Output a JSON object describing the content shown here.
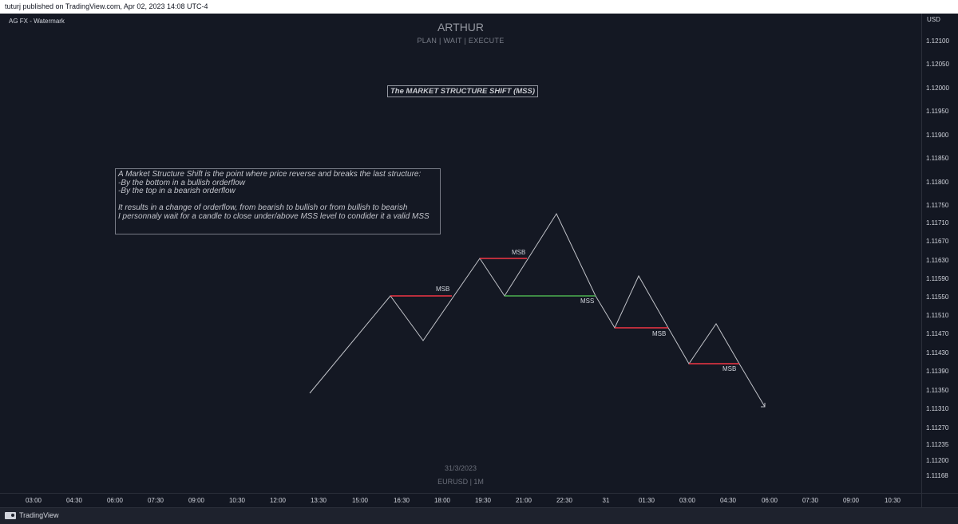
{
  "header": {
    "published_text": "tuturj published on TradingView.com, Apr 02, 2023 14:08 UTC-4"
  },
  "chart": {
    "symbol_label": "AG FX - Watermark",
    "watermark": {
      "title": "ARTHUR",
      "subtitle": "PLAN  |  WAIT  |  EXECUTE",
      "date": "31/3/2023",
      "symbol": "EURUSD | 1M"
    },
    "mss_title": "The MARKET STRUCTURE SHIFT (MSS)",
    "note_lines": [
      "A Market Structure Shift is the point where price reverse and breaks the last structure:",
      "-By the bottom in a bullish orderflow",
      "-By the top in a bearish orderflow",
      "",
      "It results in a change of orderflow, from bearish to bullish or from bullish to bearish",
      "I personnaly wait for a candle to close under/above MSS level to condider it a valid MSS"
    ],
    "markers": [
      {
        "label": "MSB",
        "kind": "break",
        "level": 1.11553
      },
      {
        "label": "MSB",
        "kind": "break",
        "level": 1.11632
      },
      {
        "label": "MSS",
        "kind": "shift",
        "level": 1.11553
      },
      {
        "label": "MSB",
        "kind": "break",
        "level": 1.11482
      },
      {
        "label": "MSB",
        "kind": "break",
        "level": 1.11409
      }
    ],
    "colors": {
      "break_line": "#f23645",
      "shift_line": "#4caf50",
      "path_line": "#c0c2c8"
    }
  },
  "price_axis": {
    "unit": "USD",
    "ticks": [
      "1.12100",
      "1.12050",
      "1.12000",
      "1.11950",
      "1.11900",
      "1.11850",
      "1.11800",
      "1.11750",
      "1.11710",
      "1.11670",
      "1.11630",
      "1.11590",
      "1.11550",
      "1.11510",
      "1.11470",
      "1.11430",
      "1.11390",
      "1.11350",
      "1.11310",
      "1.11270",
      "1.11235",
      "1.11200",
      "1.11168"
    ]
  },
  "time_axis": {
    "ticks": [
      "03:00",
      "04:30",
      "06:00",
      "07:30",
      "09:00",
      "10:30",
      "12:00",
      "13:30",
      "15:00",
      "16:30",
      "18:00",
      "19:30",
      "21:00",
      "22:30",
      "31",
      "01:30",
      "03:00",
      "04:30",
      "06:00",
      "07:30",
      "09:00",
      "10:30"
    ]
  },
  "footer": {
    "brand": "TradingView"
  }
}
